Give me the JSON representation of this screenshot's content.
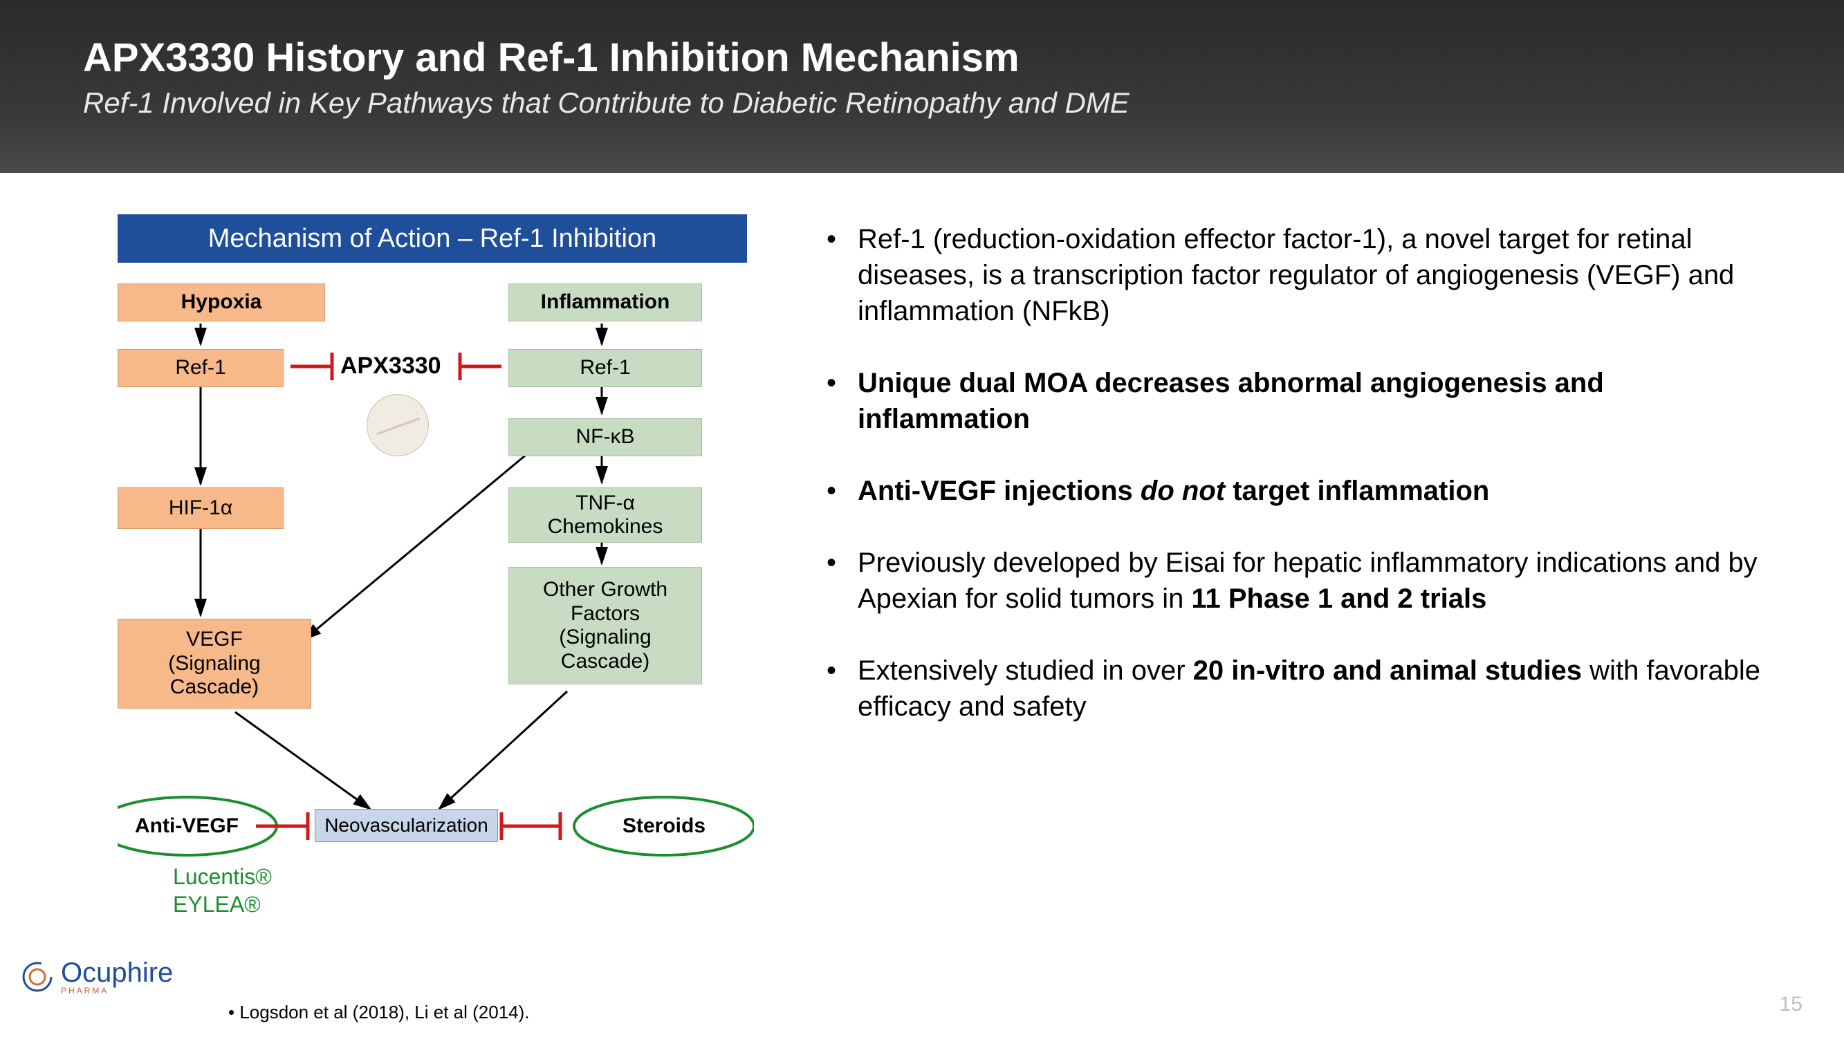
{
  "header": {
    "title": "APX3330 History and Ref-1 Inhibition Mechanism",
    "subtitle": "Ref-1 Involved in Key Pathways that Contribute to Diabetic Retinopathy and DME"
  },
  "diagram": {
    "title": "Mechanism of Action – Ref-1 Inhibition",
    "colors": {
      "title_bg": "#1f4e9b",
      "title_fg": "#ffffff",
      "orange_fill": "#f7b88a",
      "orange_border": "#d89b6e",
      "green_fill": "#c8dcc4",
      "green_border": "#a9c0a5",
      "blue_fill": "#c8d6ea",
      "blue_border": "#7a95b8",
      "inhibit_red": "#d01818",
      "ellipse_green": "#1a8f2e",
      "arrow_black": "#000000"
    },
    "left_pathway": {
      "header": "Hypoxia",
      "steps": [
        "Ref-1",
        "HIF-1α",
        "VEGF\n(Signaling\nCascade)"
      ]
    },
    "right_pathway": {
      "header": "Inflammation",
      "steps": [
        "Ref-1",
        "NF-κB",
        "TNF-α\nChemokines",
        "Other Growth\nFactors\n(Signaling\nCascade)"
      ]
    },
    "center_drug": "APX3330",
    "outcome": "Neovascularization",
    "left_inhibitor": "Anti-VEGF",
    "right_inhibitor": "Steroids",
    "drug_examples": [
      "Lucentis®",
      "EYLEA®"
    ]
  },
  "bullets": [
    {
      "html": "Ref-1 (reduction-oxidation effector factor-1), a novel target for retinal diseases, is a transcription factor regulator of angiogenesis (VEGF) and inflammation (NFkB)"
    },
    {
      "html": "<span class=\"b\">Unique dual MOA decreases abnormal angiogenesis and inflammation</span>"
    },
    {
      "html": "<span class=\"b\">Anti-VEGF injections <span class=\"itb\">do not</span> target inflammation</span>"
    },
    {
      "html": "Previously developed by Eisai for hepatic inflammatory indications and by Apexian for solid tumors in <span class=\"b\">11 Phase 1 and 2 trials</span>"
    },
    {
      "html": "Extensively studied in over <span class=\"b\">20 in-vitro and animal studies</span> with favorable efficacy and safety"
    }
  ],
  "footnote": "Logsdon et al (2018), Li et al (2014).",
  "logo": "Ocuphire",
  "logo_sub": "PHARMA",
  "page": "15"
}
